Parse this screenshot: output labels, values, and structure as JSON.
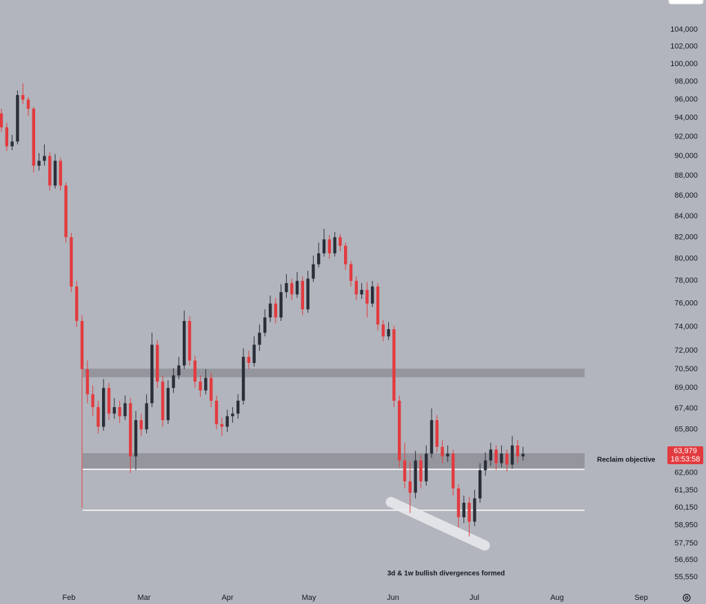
{
  "chart_data": {
    "type": "candlestick",
    "log_scale": true,
    "ylim": [
      54600,
      107600
    ],
    "yticks": [
      {
        "value": 104000,
        "label": "104,000"
      },
      {
        "value": 102000,
        "label": "102,000"
      },
      {
        "value": 100000,
        "label": "100,000"
      },
      {
        "value": 98000,
        "label": "98,000"
      },
      {
        "value": 96000,
        "label": "96,000"
      },
      {
        "value": 94000,
        "label": "94,000"
      },
      {
        "value": 92000,
        "label": "92,000"
      },
      {
        "value": 90000,
        "label": "90,000"
      },
      {
        "value": 88000,
        "label": "88,000"
      },
      {
        "value": 86000,
        "label": "86,000"
      },
      {
        "value": 84000,
        "label": "84,000"
      },
      {
        "value": 82000,
        "label": "82,000"
      },
      {
        "value": 80000,
        "label": "80,000"
      },
      {
        "value": 78000,
        "label": "78,000"
      },
      {
        "value": 76000,
        "label": "76,000"
      },
      {
        "value": 74000,
        "label": "74,000"
      },
      {
        "value": 72000,
        "label": "72,000"
      },
      {
        "value": 70500,
        "label": "70,500"
      },
      {
        "value": 69000,
        "label": "69,000"
      },
      {
        "value": 67400,
        "label": "67,400"
      },
      {
        "value": 65800,
        "label": "65,800"
      },
      {
        "value": 62600,
        "label": "62,600"
      },
      {
        "value": 61350,
        "label": "61,350"
      },
      {
        "value": 60150,
        "label": "60,150"
      },
      {
        "value": 58950,
        "label": "58,950"
      },
      {
        "value": 57750,
        "label": "57,750"
      },
      {
        "value": 56650,
        "label": "56,650"
      },
      {
        "value": 55550,
        "label": "55,550"
      }
    ],
    "x_labels": [
      "Feb",
      "Mar",
      "Apr",
      "May",
      "Jun",
      "Jul",
      "Aug",
      "Sep"
    ],
    "up_color": "#2a2e39",
    "down_color": "#e23b3f",
    "ohlc": [
      [
        94500,
        95000,
        92500,
        93000
      ],
      [
        93000,
        93500,
        90500,
        91000
      ],
      [
        91000,
        92200,
        90600,
        91500
      ],
      [
        91500,
        97000,
        91200,
        96500
      ],
      [
        96500,
        97800,
        95500,
        96000
      ],
      [
        96000,
        96300,
        94200,
        95000
      ],
      [
        95000,
        95200,
        88300,
        89000
      ],
      [
        89000,
        90300,
        88500,
        89500
      ],
      [
        89500,
        91200,
        89000,
        90000
      ],
      [
        90000,
        90400,
        86500,
        87000
      ],
      [
        87000,
        90200,
        86700,
        89500
      ],
      [
        89500,
        89800,
        86500,
        87000
      ],
      [
        87000,
        87300,
        81500,
        82000
      ],
      [
        82000,
        82400,
        77000,
        77500
      ],
      [
        77500,
        78000,
        74000,
        74500
      ],
      [
        74500,
        75000,
        60150,
        70500
      ],
      [
        70500,
        71200,
        67800,
        68500
      ],
      [
        68500,
        69200,
        66800,
        67500
      ],
      [
        67500,
        68000,
        65500,
        66000
      ],
      [
        66000,
        69700,
        65700,
        69000
      ],
      [
        69000,
        69400,
        66500,
        67000
      ],
      [
        67000,
        68200,
        66600,
        67500
      ],
      [
        67500,
        68000,
        66300,
        66800
      ],
      [
        66800,
        68400,
        66500,
        67800
      ],
      [
        67800,
        68200,
        62600,
        63800
      ],
      [
        63800,
        67200,
        62800,
        66500
      ],
      [
        66500,
        67000,
        65300,
        65800
      ],
      [
        65800,
        68500,
        65500,
        67800
      ],
      [
        67800,
        73500,
        67500,
        72500
      ],
      [
        72500,
        72900,
        69000,
        69500
      ],
      [
        69500,
        70000,
        66000,
        66500
      ],
      [
        66500,
        69600,
        66200,
        69000
      ],
      [
        69000,
        70600,
        68600,
        70000
      ],
      [
        70000,
        71500,
        69700,
        70800
      ],
      [
        70800,
        75400,
        70500,
        74500
      ],
      [
        74500,
        74900,
        70800,
        71200
      ],
      [
        71200,
        71600,
        69000,
        69500
      ],
      [
        69500,
        70000,
        68300,
        68800
      ],
      [
        68800,
        70500,
        68500,
        69800
      ],
      [
        69800,
        70200,
        67500,
        68000
      ],
      [
        68000,
        68400,
        65800,
        66200
      ],
      [
        66200,
        66700,
        65300,
        66000
      ],
      [
        66000,
        67300,
        65600,
        66800
      ],
      [
        66800,
        67500,
        66300,
        67000
      ],
      [
        67000,
        68500,
        66600,
        68000
      ],
      [
        68000,
        72200,
        67700,
        71500
      ],
      [
        71500,
        72000,
        70500,
        71000
      ],
      [
        71000,
        73200,
        70700,
        72500
      ],
      [
        72500,
        74200,
        72000,
        73500
      ],
      [
        73500,
        75500,
        73200,
        74800
      ],
      [
        74800,
        76700,
        74400,
        76000
      ],
      [
        76000,
        76500,
        74300,
        74800
      ],
      [
        74800,
        77700,
        74500,
        77000
      ],
      [
        77000,
        78600,
        76500,
        77800
      ],
      [
        77800,
        78200,
        76300,
        76800
      ],
      [
        76800,
        78800,
        76500,
        78000
      ],
      [
        78000,
        78400,
        75000,
        75500
      ],
      [
        75500,
        78900,
        75200,
        78200
      ],
      [
        78200,
        80300,
        77900,
        79500
      ],
      [
        79500,
        81500,
        79200,
        80500
      ],
      [
        80500,
        82800,
        80200,
        81800
      ],
      [
        81800,
        82200,
        80000,
        80500
      ],
      [
        80500,
        82500,
        80200,
        82000
      ],
      [
        82000,
        82300,
        80700,
        81200
      ],
      [
        81200,
        81500,
        79000,
        79500
      ],
      [
        79500,
        79800,
        77500,
        78000
      ],
      [
        78000,
        78400,
        76300,
        76800
      ],
      [
        76800,
        77800,
        76400,
        77200
      ],
      [
        77200,
        77900,
        74800,
        76000
      ],
      [
        76000,
        78000,
        75700,
        77500
      ],
      [
        77500,
        77800,
        73700,
        74200
      ],
      [
        74200,
        74600,
        72800,
        73200
      ],
      [
        73200,
        74400,
        72900,
        73800
      ],
      [
        73800,
        74100,
        67500,
        68000
      ],
      [
        68000,
        68400,
        63000,
        63500
      ],
      [
        63500,
        64800,
        61500,
        62000
      ],
      [
        62000,
        63400,
        59800,
        61200
      ],
      [
        61200,
        64200,
        60800,
        63500
      ],
      [
        63500,
        63900,
        61500,
        62000
      ],
      [
        62000,
        64600,
        61700,
        64000
      ],
      [
        64000,
        67400,
        63700,
        66500
      ],
      [
        66500,
        66900,
        64100,
        64500
      ],
      [
        64500,
        65000,
        63300,
        63800
      ],
      [
        63800,
        64600,
        63400,
        64000
      ],
      [
        64000,
        64300,
        61000,
        61500
      ],
      [
        61500,
        61800,
        58800,
        59500
      ],
      [
        59500,
        61000,
        59100,
        60500
      ],
      [
        60500,
        60900,
        58200,
        59200
      ],
      [
        59200,
        61400,
        58900,
        60800
      ],
      [
        60800,
        63300,
        60500,
        62800
      ],
      [
        62800,
        64100,
        62400,
        63500
      ],
      [
        63500,
        64800,
        63100,
        64300
      ],
      [
        64300,
        64600,
        62800,
        63300
      ],
      [
        63300,
        64600,
        63000,
        64000
      ],
      [
        64000,
        64300,
        62700,
        63200
      ],
      [
        63200,
        65300,
        62900,
        64600
      ],
      [
        64600,
        65000,
        63300,
        63800
      ],
      [
        63800,
        64500,
        63500,
        63979
      ]
    ],
    "zones": [
      {
        "low": 69850,
        "high": 70540
      },
      {
        "low": 62910,
        "high": 64030
      }
    ],
    "zone_color": "#8f9198",
    "levels": [
      62860,
      59980
    ],
    "level_color": "#ffffff",
    "last_price": {
      "value": 63979,
      "label": "63,979"
    },
    "countdown": "16:53:58",
    "annotations": [
      "Reclaim objective",
      "3d & 1w bullish divergences formed"
    ]
  }
}
